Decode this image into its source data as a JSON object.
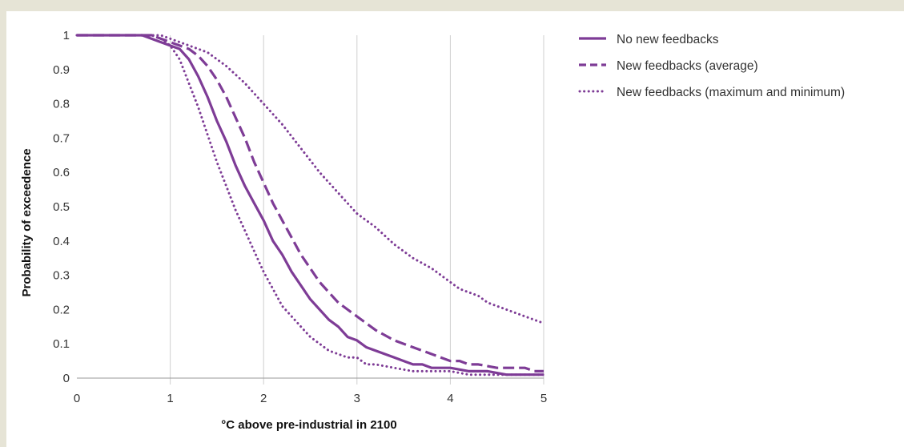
{
  "chart_data": {
    "type": "line",
    "title": "",
    "xlabel": "°C above pre-industrial in 2100",
    "ylabel": "Probability of exceedence",
    "xlim": [
      0,
      5
    ],
    "ylim": [
      0,
      1
    ],
    "xticks": [
      "0",
      "1",
      "2",
      "3",
      "4",
      "5"
    ],
    "yticks": [
      "0",
      "0.1",
      "0.2",
      "0.3",
      "0.4",
      "0.5",
      "0.6",
      "0.7",
      "0.8",
      "0.9",
      "1"
    ],
    "grid": "vertical",
    "legend_position": "right",
    "color": "#7e3c96",
    "series": [
      {
        "name": "No new feedbacks",
        "style": "solid",
        "x": [
          0,
          0.7,
          0.9,
          1.1,
          1.2,
          1.3,
          1.4,
          1.5,
          1.6,
          1.7,
          1.8,
          1.9,
          2.0,
          2.1,
          2.2,
          2.3,
          2.4,
          2.5,
          2.6,
          2.7,
          2.8,
          2.9,
          3.0,
          3.1,
          3.2,
          3.4,
          3.6,
          3.7,
          3.8,
          4.0,
          4.2,
          4.4,
          4.6,
          5.0
        ],
        "y": [
          1.0,
          1.0,
          0.98,
          0.96,
          0.93,
          0.88,
          0.82,
          0.75,
          0.69,
          0.62,
          0.56,
          0.51,
          0.46,
          0.4,
          0.36,
          0.31,
          0.27,
          0.23,
          0.2,
          0.17,
          0.15,
          0.12,
          0.11,
          0.09,
          0.08,
          0.06,
          0.04,
          0.04,
          0.03,
          0.03,
          0.02,
          0.02,
          0.01,
          0.01
        ]
      },
      {
        "name": "New feedbacks (average)",
        "style": "dashed",
        "x": [
          0,
          0.8,
          1.0,
          1.2,
          1.3,
          1.4,
          1.5,
          1.6,
          1.7,
          1.8,
          1.9,
          2.0,
          2.1,
          2.2,
          2.3,
          2.4,
          2.5,
          2.6,
          2.7,
          2.8,
          2.9,
          3.0,
          3.2,
          3.4,
          3.6,
          3.8,
          4.0,
          4.1,
          4.2,
          4.3,
          4.5,
          4.6,
          4.8,
          4.9,
          5.0
        ],
        "y": [
          1.0,
          1.0,
          0.98,
          0.96,
          0.94,
          0.91,
          0.87,
          0.82,
          0.76,
          0.7,
          0.63,
          0.57,
          0.51,
          0.46,
          0.41,
          0.36,
          0.32,
          0.28,
          0.25,
          0.22,
          0.2,
          0.18,
          0.14,
          0.11,
          0.09,
          0.07,
          0.05,
          0.05,
          0.04,
          0.04,
          0.03,
          0.03,
          0.03,
          0.02,
          0.02
        ]
      },
      {
        "name": "New feedbacks (maximum and minimum)",
        "style": "dotted",
        "x": [
          0,
          0.9,
          1.0,
          1.2,
          1.4,
          1.6,
          1.8,
          2.0,
          2.2,
          2.4,
          2.6,
          2.8,
          3.0,
          3.2,
          3.4,
          3.6,
          3.8,
          4.0,
          4.1,
          4.3,
          4.4,
          4.6,
          4.8,
          5.0
        ],
        "y": [
          1.0,
          1.0,
          0.99,
          0.97,
          0.95,
          0.91,
          0.86,
          0.8,
          0.74,
          0.67,
          0.6,
          0.54,
          0.48,
          0.44,
          0.39,
          0.35,
          0.32,
          0.28,
          0.26,
          0.24,
          0.22,
          0.2,
          0.18,
          0.16
        ]
      },
      {
        "name": "",
        "style": "dotted",
        "x": [
          0,
          0.8,
          0.9,
          1.0,
          1.1,
          1.2,
          1.3,
          1.4,
          1.5,
          1.6,
          1.7,
          1.8,
          1.9,
          2.0,
          2.1,
          2.2,
          2.3,
          2.4,
          2.5,
          2.6,
          2.7,
          2.8,
          2.9,
          3.0,
          3.1,
          3.2,
          3.4,
          3.6,
          3.8,
          4.0,
          4.2,
          4.4,
          4.6,
          5.0
        ],
        "y": [
          1.0,
          1.0,
          0.99,
          0.97,
          0.93,
          0.86,
          0.79,
          0.71,
          0.63,
          0.56,
          0.49,
          0.43,
          0.37,
          0.31,
          0.26,
          0.21,
          0.18,
          0.15,
          0.12,
          0.1,
          0.08,
          0.07,
          0.06,
          0.06,
          0.04,
          0.04,
          0.03,
          0.02,
          0.02,
          0.02,
          0.01,
          0.01,
          0.01,
          0.01
        ]
      }
    ]
  },
  "legend": {
    "items": [
      {
        "label": "No new feedbacks",
        "style": "solid"
      },
      {
        "label": "New feedbacks (average)",
        "style": "dashed"
      },
      {
        "label": "New feedbacks (maximum and minimum)",
        "style": "dotted"
      }
    ]
  }
}
